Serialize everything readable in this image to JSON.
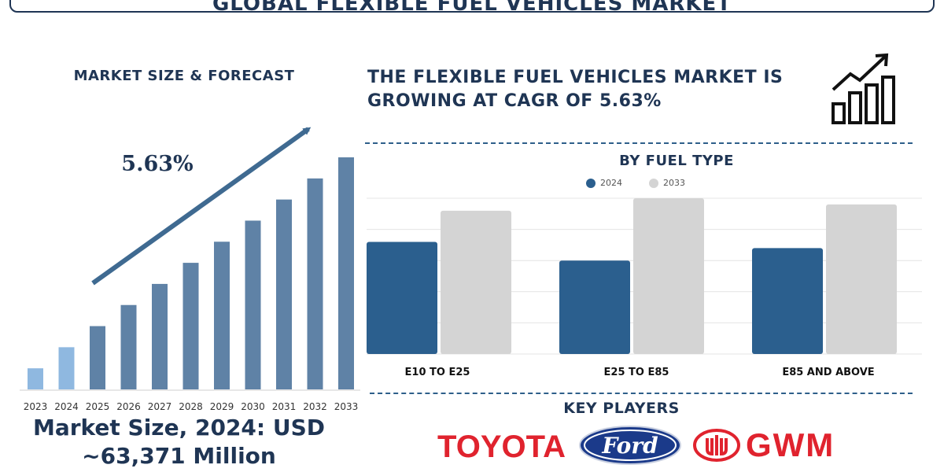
{
  "title": "GLOBAL FLEXIBLE FUEL VEHICLES MARKET",
  "left_panel": {
    "heading": "MARKET SIZE & FORECAST",
    "cagr_label": "5.63%",
    "market_size_line1": "Market Size, 2024: USD",
    "market_size_line2": "~63,371 Million"
  },
  "headline": {
    "line1": "THE FLEXIBLE FUEL VEHICLES MARKET IS",
    "line2": "GROWING AT CAGR OF 5.63%"
  },
  "fuel_section": {
    "heading": "BY FUEL TYPE"
  },
  "key_players": {
    "heading": "KEY PLAYERS",
    "logos": [
      "TOYOTA",
      "Ford",
      "GWM"
    ]
  },
  "colors": {
    "navy": "#1f3554",
    "bar_2024": "#2b5f8e",
    "bar_2033": "#d4d4d4",
    "forecast_bar": "#5f82a6",
    "highlight_bar": "#8fb8e0",
    "arrow": "#3f6a91",
    "brand_red": "#e0232e",
    "ford_blue": "#1b3a8a"
  },
  "icons": [
    "growth-chart-icon",
    "trend-arrow"
  ],
  "chart_data": [
    {
      "type": "bar",
      "categories": [
        "2023",
        "2024",
        "2025",
        "2026",
        "2027",
        "2028",
        "2029",
        "2030",
        "2031",
        "2032",
        "2033"
      ],
      "values": [
        1.0,
        2.0,
        3.0,
        4.0,
        5.0,
        6.0,
        7.0,
        8.0,
        9.0,
        10.0,
        11.0
      ],
      "highlight": [
        "2023",
        "2024"
      ],
      "annotation": "5.63%",
      "title": "MARKET SIZE & FORECAST",
      "xlabel": "",
      "ylabel": "",
      "ylim": [
        0,
        11.0
      ],
      "grid": false
    },
    {
      "type": "bar",
      "title": "BY FUEL TYPE",
      "categories": [
        "E10 TO E25",
        "E25 TO E85",
        "E85 AND ABOVE"
      ],
      "series": [
        {
          "name": "2024",
          "values": [
            36,
            30,
            34
          ]
        },
        {
          "name": "2033",
          "values": [
            46,
            50,
            48
          ]
        }
      ],
      "xlabel": "",
      "ylabel": "",
      "ylim": [
        0,
        50
      ],
      "grid": true,
      "legend": "top-center"
    }
  ]
}
